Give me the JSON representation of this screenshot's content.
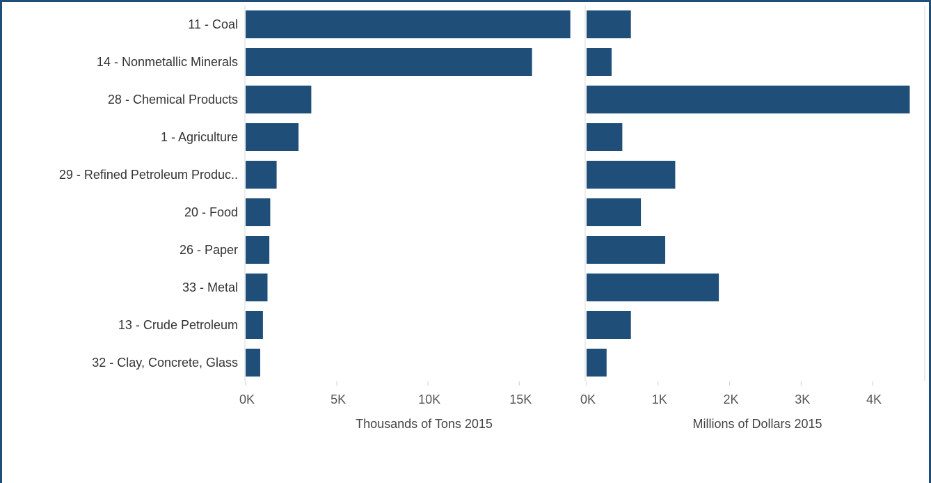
{
  "chart_data": [
    {
      "type": "bar",
      "orientation": "horizontal",
      "categories": [
        "11 - Coal",
        "14 - Nonmetallic Minerals",
        "28 - Chemical Products",
        "1 - Agriculture",
        "29 - Refined Petroleum Produc..",
        "20 - Food",
        "26 - Paper",
        "33 - Metal",
        "13 - Crude Petroleum",
        "32 - Clay, Concrete, Glass"
      ],
      "values": [
        17800,
        15700,
        3600,
        2900,
        1700,
        1350,
        1300,
        1200,
        950,
        800
      ],
      "xlabel": "Thousands of Tons 2015",
      "xlim": [
        0,
        18500
      ],
      "ticks": [
        {
          "value": 0,
          "label": "0K"
        },
        {
          "value": 5000,
          "label": "5K"
        },
        {
          "value": 10000,
          "label": "10K"
        },
        {
          "value": 15000,
          "label": "15K"
        }
      ]
    },
    {
      "type": "bar",
      "orientation": "horizontal",
      "categories": [
        "11 - Coal",
        "14 - Nonmetallic Minerals",
        "28 - Chemical Products",
        "1 - Agriculture",
        "29 - Refined Petroleum Produc..",
        "20 - Food",
        "26 - Paper",
        "33 - Metal",
        "13 - Crude Petroleum",
        "32 - Clay, Concrete, Glass"
      ],
      "values": [
        620,
        350,
        4520,
        500,
        1240,
        760,
        1100,
        1850,
        620,
        280
      ],
      "xlabel": "Millions of Dollars 2015",
      "xlim": [
        0,
        4720
      ],
      "ticks": [
        {
          "value": 0,
          "label": "0K"
        },
        {
          "value": 1000,
          "label": "1K"
        },
        {
          "value": 2000,
          "label": "2K"
        },
        {
          "value": 3000,
          "label": "3K"
        },
        {
          "value": 4000,
          "label": "4K"
        }
      ]
    }
  ],
  "colors": {
    "bar": "#1f4e79",
    "frame": "#1f4e79",
    "divider": "#d9d9d9"
  }
}
